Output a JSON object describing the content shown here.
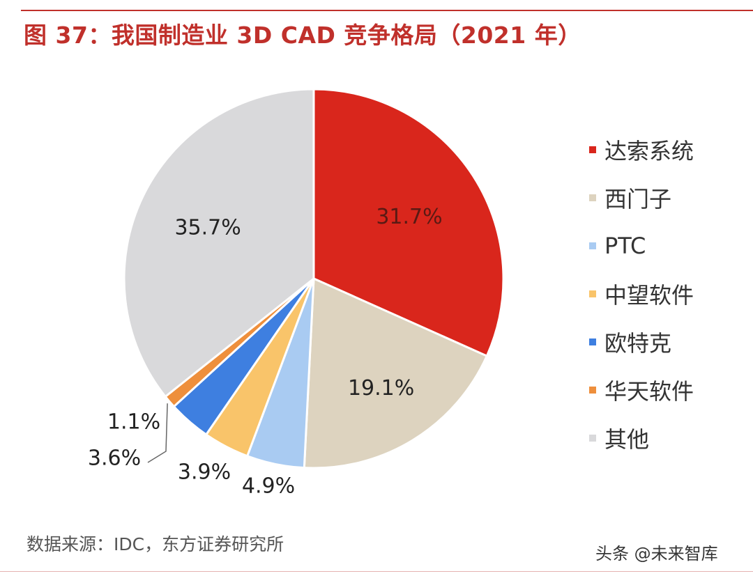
{
  "title": "图 37：我国制造业 3D CAD 竞争格局（2021 年）",
  "source": "数据来源：IDC，东方证券研究所",
  "watermark": "头条 @未来智库",
  "chart_data": {
    "type": "pie",
    "title": "图 37：我国制造业 3D CAD 竞争格局（2021 年）",
    "start": "12 o'clock, clockwise",
    "legend_position": "right",
    "slices": [
      {
        "name": "达索系统",
        "value": 31.7,
        "label": "31.7%",
        "color": "#d9261c",
        "label_color": "#5a1a14"
      },
      {
        "name": "西门子",
        "value": 19.1,
        "label": "19.1%",
        "color": "#ddd3bf",
        "label_color": "#222222"
      },
      {
        "name": "PTC",
        "value": 4.9,
        "label": "4.9%",
        "color": "#a9cbf2",
        "label_color": "#222222"
      },
      {
        "name": "中望软件",
        "value": 3.9,
        "label": "3.9%",
        "color": "#f9c46a",
        "label_color": "#222222"
      },
      {
        "name": "欧特克",
        "value": 3.6,
        "label": "3.6%",
        "color": "#3e7fe0",
        "label_color": "#222222"
      },
      {
        "name": "华天软件",
        "value": 1.1,
        "label": "1.1%",
        "color": "#ee8f3c",
        "label_color": "#222222"
      },
      {
        "name": "其他",
        "value": 35.7,
        "label": "35.7%",
        "color": "#d9d9db",
        "label_color": "#222222"
      }
    ]
  }
}
